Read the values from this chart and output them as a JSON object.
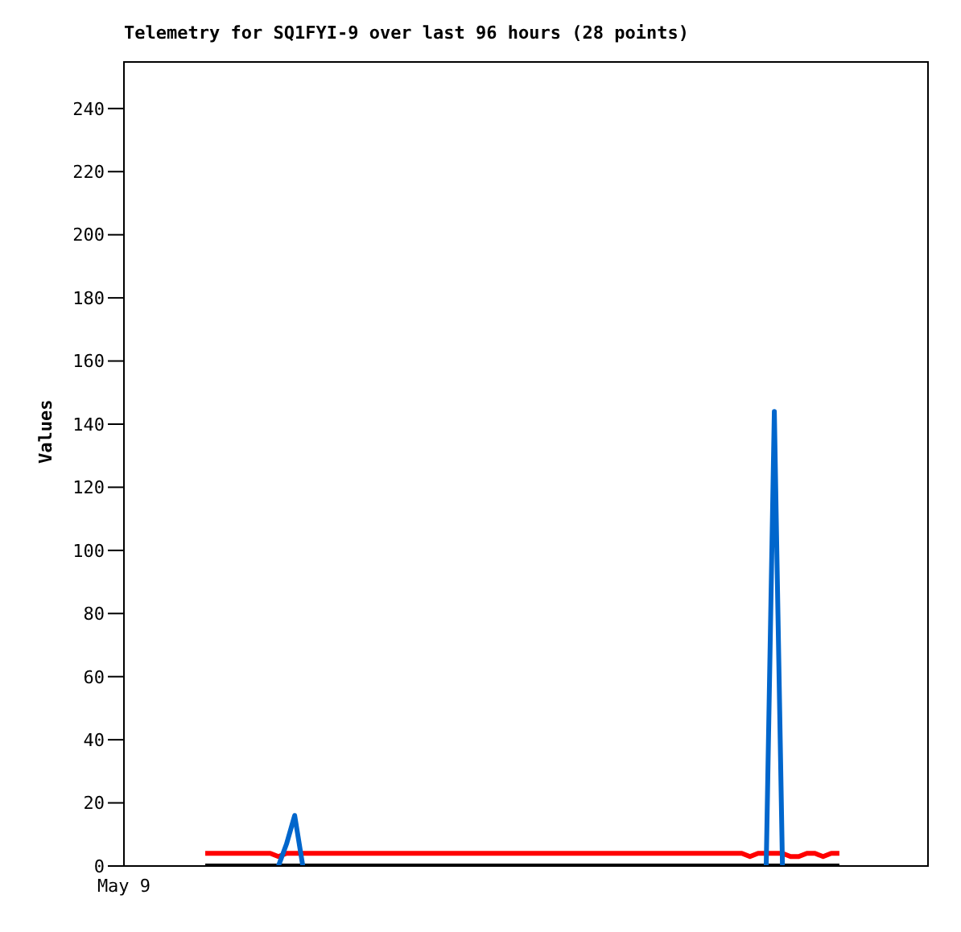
{
  "chart_data": {
    "type": "line",
    "title": "Telemetry for SQ1FYI-9 over last 96 hours (28 points)",
    "ylabel": "Values",
    "categories": [
      "May 9",
      null,
      null,
      null,
      null,
      null,
      null,
      null,
      null,
      null,
      null,
      null,
      null,
      null,
      null,
      null,
      null,
      null,
      null,
      null,
      null,
      null,
      null,
      null,
      null,
      null,
      null,
      null,
      null,
      null,
      null,
      null,
      null,
      null,
      null,
      null,
      null,
      null,
      null,
      null,
      null,
      null,
      null,
      null,
      null,
      null,
      null,
      null,
      null,
      null,
      null,
      null,
      null,
      null,
      null,
      null,
      null,
      null,
      null,
      null,
      null,
      null,
      null,
      null,
      null,
      null,
      null,
      null,
      null,
      null,
      null,
      null,
      null,
      null,
      null,
      null,
      null,
      null,
      null,
      null,
      null,
      null,
      null,
      null,
      null,
      null,
      null,
      null,
      null,
      null,
      null,
      null,
      null,
      null,
      null,
      null,
      null,
      null,
      null,
      null
    ],
    "ylim": [
      0,
      255
    ],
    "yticks": [
      0,
      20,
      40,
      60,
      80,
      100,
      120,
      140,
      160,
      180,
      200,
      220,
      240
    ],
    "grid": false,
    "legend": false,
    "marker": "none",
    "line_style": "solid",
    "series": [
      {
        "color": "#000000",
        "values": [
          null,
          null,
          null,
          null,
          null,
          null,
          null,
          null,
          null,
          null,
          0,
          0,
          0,
          0,
          0,
          0,
          0,
          0,
          0,
          0,
          0,
          0,
          0,
          0,
          0,
          0,
          0,
          0,
          0,
          0,
          0,
          0,
          0,
          0,
          0,
          0,
          0,
          0,
          0,
          0,
          0,
          0,
          0,
          0,
          0,
          0,
          0,
          0,
          0,
          0,
          0,
          0,
          0,
          0,
          0,
          0,
          0,
          0,
          0,
          0,
          0,
          0,
          0,
          0,
          0,
          0,
          0,
          0,
          0,
          0,
          0,
          0,
          0,
          0,
          0,
          0,
          0,
          0,
          0,
          0,
          0,
          0,
          0,
          0,
          0,
          0,
          0,
          0,
          0,
          null,
          null,
          null,
          null,
          null,
          null,
          null,
          null,
          null,
          null,
          null
        ]
      },
      {
        "color": "#ff0000",
        "values": [
          null,
          null,
          null,
          null,
          null,
          null,
          null,
          null,
          null,
          null,
          4,
          4,
          4,
          4,
          4,
          4,
          4,
          4,
          4,
          3,
          4,
          4,
          4,
          4,
          4,
          4,
          4,
          4,
          4,
          4,
          4,
          4,
          4,
          4,
          4,
          4,
          4,
          4,
          4,
          4,
          4,
          4,
          4,
          4,
          4,
          4,
          4,
          4,
          4,
          4,
          4,
          4,
          4,
          4,
          4,
          4,
          4,
          4,
          4,
          4,
          4,
          4,
          4,
          4,
          4,
          4,
          4,
          4,
          4,
          4,
          4,
          4,
          4,
          4,
          4,
          4,
          4,
          3,
          4,
          4,
          4,
          4,
          3,
          3,
          4,
          4,
          3,
          4,
          4,
          null,
          null,
          null,
          null,
          null,
          null,
          null,
          null,
          null,
          null,
          null
        ]
      },
      {
        "color": "#0066cc",
        "values": [
          null,
          null,
          null,
          null,
          null,
          null,
          null,
          null,
          null,
          null,
          null,
          null,
          null,
          null,
          null,
          null,
          null,
          null,
          null,
          0,
          7,
          16,
          0,
          null,
          null,
          null,
          null,
          null,
          null,
          null,
          null,
          null,
          null,
          null,
          null,
          null,
          null,
          null,
          null,
          null,
          null,
          null,
          null,
          null,
          null,
          null,
          null,
          null,
          null,
          null,
          null,
          null,
          null,
          null,
          null,
          null,
          null,
          null,
          null,
          null,
          null,
          null,
          null,
          null,
          null,
          null,
          null,
          null,
          null,
          null,
          null,
          null,
          null,
          null,
          null,
          null,
          null,
          null,
          null,
          0,
          144,
          0,
          null,
          null,
          null,
          null,
          null,
          null,
          null,
          null,
          null,
          null,
          null,
          null,
          null,
          null,
          null,
          null,
          null,
          null
        ]
      }
    ]
  }
}
